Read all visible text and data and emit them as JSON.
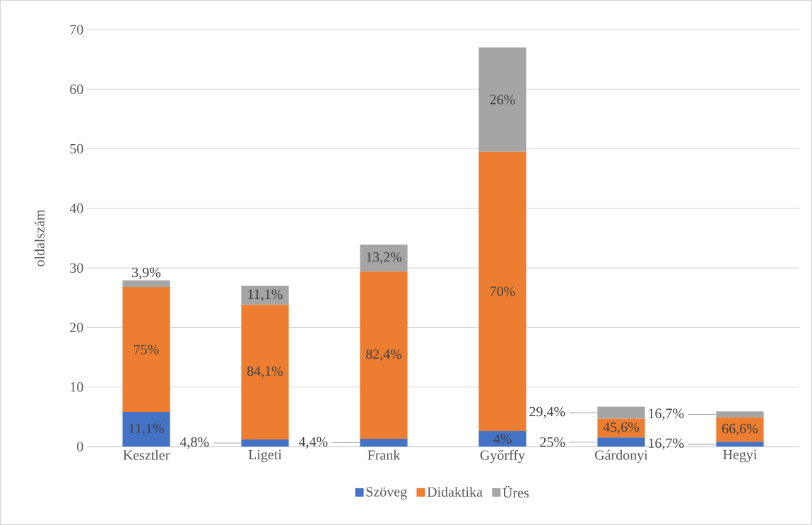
{
  "chart_data": {
    "type": "bar",
    "stacked": true,
    "ylabel": "oldalszám",
    "categories": [
      "Kesztler",
      "Ligeti",
      "Frank",
      "Győrffy",
      "Gárdonyi",
      "Hegyi"
    ],
    "series": [
      {
        "name": "Szöveg",
        "color": "#4472c4",
        "values": [
          5.8,
          1.2,
          1.3,
          2.6,
          1.5,
          0.8
        ]
      },
      {
        "name": "Didaktika",
        "color": "#ed7d31",
        "values": [
          21.0,
          22.6,
          28.1,
          46.9,
          3.2,
          4.1
        ]
      },
      {
        "name": "Üres",
        "color": "#a5a5a5",
        "values": [
          1.1,
          3.2,
          4.5,
          17.5,
          2.0,
          1.0
        ]
      }
    ],
    "annotations": [
      "11,1%",
      "75%",
      "3,9%",
      "4,8%",
      "84,1%",
      "11,1%",
      "4,4%",
      "82,4%",
      "13,2%",
      "4%",
      "70%",
      "26%",
      "25%",
      "45,6%",
      "29,4%",
      "16,7%",
      "66,6%",
      "16,7%"
    ],
    "ylim": [
      0,
      70
    ],
    "yticks": [
      0,
      10,
      20,
      30,
      40,
      50,
      60,
      70
    ],
    "grid": "y",
    "legend": "bottom"
  }
}
